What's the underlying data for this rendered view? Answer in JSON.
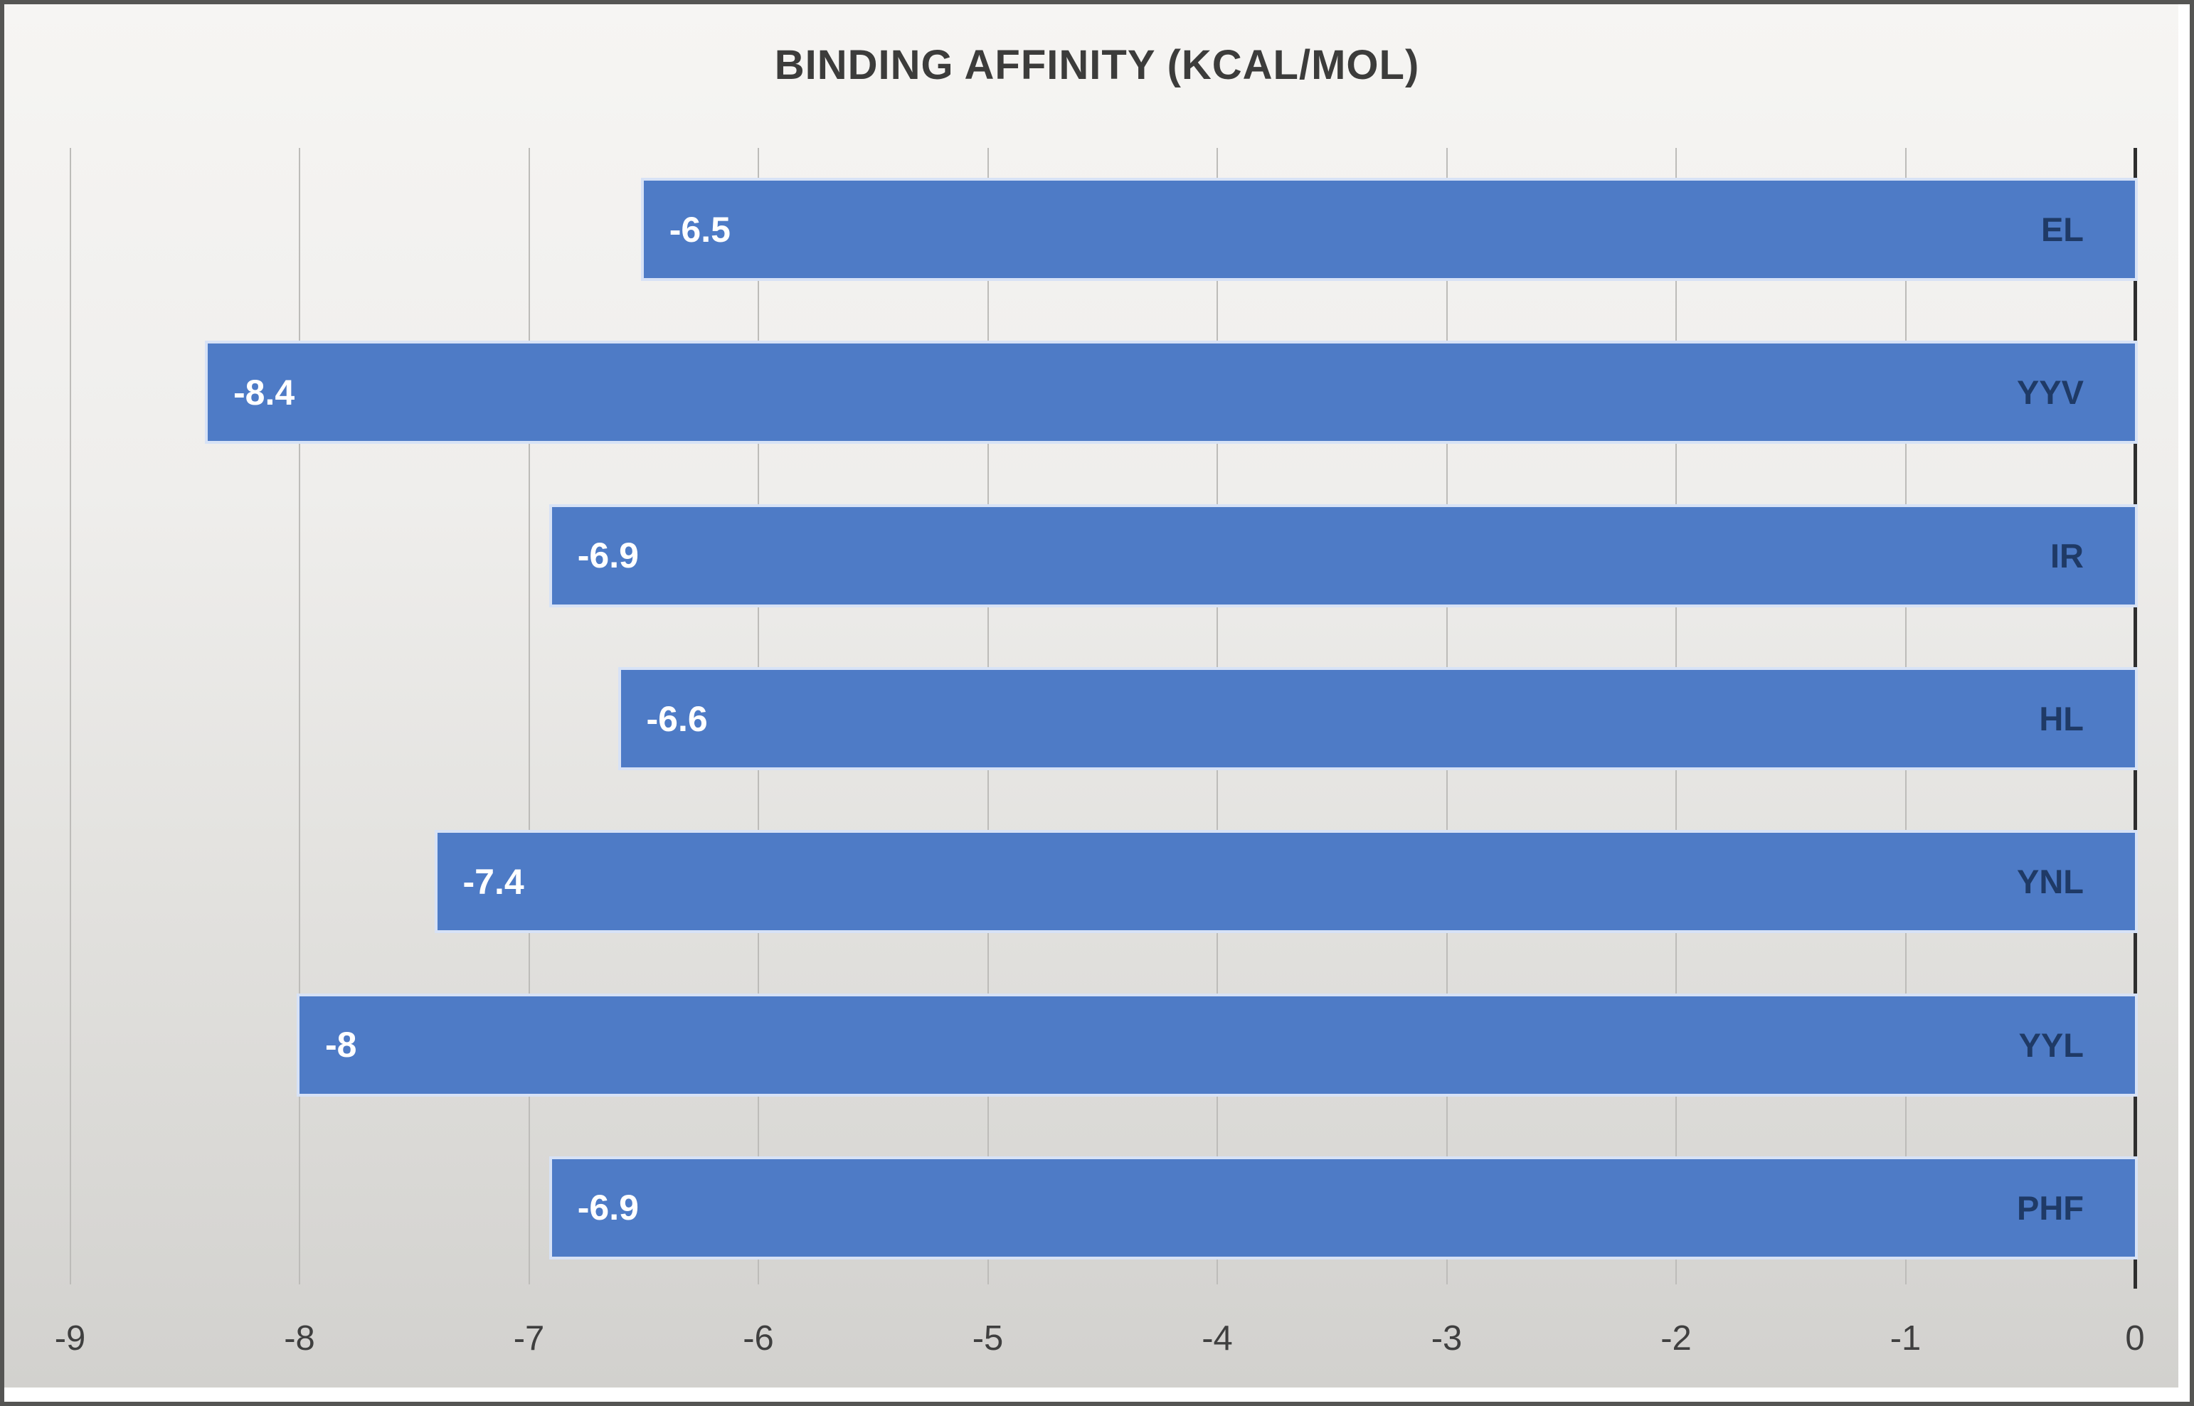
{
  "chart_data": {
    "type": "bar",
    "orientation": "horizontal",
    "title": "BINDING AFFINITY (KCAL/MOL)",
    "xlabel": "",
    "ylabel": "",
    "categories": [
      "EL",
      "YYV",
      "IR",
      "HL",
      "YNL",
      "YYL",
      "PHF"
    ],
    "values": [
      -6.5,
      -8.4,
      -6.9,
      -6.6,
      -7.4,
      -8,
      -6.9
    ],
    "value_labels": [
      "-6.5",
      "-8.4",
      "-6.9",
      "-6.6",
      "-7.4",
      "-8",
      "-6.9"
    ],
    "xlim": [
      -9,
      0
    ],
    "xticks": [
      -9,
      -8,
      -7,
      -6,
      -5,
      -4,
      -3,
      -2,
      -1,
      0
    ],
    "grid": true,
    "legend": false,
    "colors": {
      "bar_fill": "#4e7bc6",
      "bar_halo": "#d7e2f6",
      "value_label": "#ffffff",
      "category_label": "#1f3a66",
      "axis_line": "#2e2e2e",
      "gridline": "#bdbcb9",
      "tick_label": "#3f3f3f",
      "title": "#3c3c3b",
      "background_top": "#f6f5f3",
      "background_bottom": "#d2d1ce"
    }
  }
}
